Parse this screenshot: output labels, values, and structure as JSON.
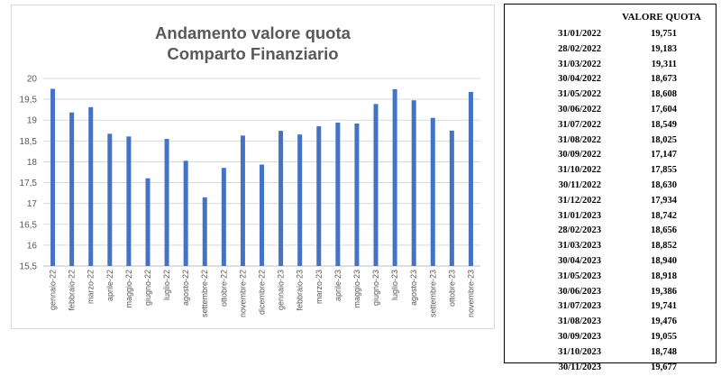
{
  "chart_data": {
    "type": "bar",
    "title": [
      "Andamento valore quota",
      "Comparto Finanziario"
    ],
    "xlabel": "",
    "ylabel": "",
    "ylim": [
      15.5,
      20
    ],
    "yticks": [
      "15,5",
      "16",
      "16,5",
      "17",
      "17,5",
      "18",
      "18,5",
      "19",
      "19,5",
      "20"
    ],
    "ytick_values": [
      15.5,
      16,
      16.5,
      17,
      17.5,
      18,
      18.5,
      19,
      19.5,
      20
    ],
    "categories": [
      "gennaio-22",
      "febbraio-22",
      "marzo-22",
      "aprile-22",
      "maggio-22",
      "giugno-22",
      "luglio-22",
      "agosto-22",
      "settembre-22",
      "ottobre-22",
      "novembre-22",
      "dicembre-22",
      "gennaio-23",
      "febbraio-23",
      "marzo-23",
      "aprile-23",
      "maggio-23",
      "giugno-23",
      "luglio-23",
      "agosto-23",
      "settembre-23",
      "ottobre-23",
      "novembre-23"
    ],
    "values": [
      19.751,
      19.183,
      19.311,
      18.673,
      18.608,
      17.604,
      18.549,
      18.025,
      17.147,
      17.855,
      18.63,
      17.934,
      18.742,
      18.656,
      18.852,
      18.94,
      18.918,
      19.386,
      19.741,
      19.476,
      19.055,
      18.748,
      19.677
    ],
    "bar_color": "#4472c4",
    "gridlines": true,
    "legend": false
  },
  "table": {
    "header": "VALORE QUOTA",
    "rows": [
      {
        "date": "31/01/2022",
        "value": "19,751"
      },
      {
        "date": "28/02/2022",
        "value": "19,183"
      },
      {
        "date": "31/03/2022",
        "value": "19,311"
      },
      {
        "date": "30/04/2022",
        "value": "18,673"
      },
      {
        "date": "31/05/2022",
        "value": "18,608"
      },
      {
        "date": "30/06/2022",
        "value": "17,604"
      },
      {
        "date": "31/07/2022",
        "value": "18,549"
      },
      {
        "date": "31/08/2022",
        "value": "18,025"
      },
      {
        "date": "30/09/2022",
        "value": "17,147"
      },
      {
        "date": "31/10/2022",
        "value": "17,855"
      },
      {
        "date": "30/11/2022",
        "value": "18,630"
      },
      {
        "date": "31/12/2022",
        "value": "17,934"
      },
      {
        "date": "31/01/2023",
        "value": "18,742"
      },
      {
        "date": "28/02/2023",
        "value": "18,656"
      },
      {
        "date": "31/03/2023",
        "value": "18,852"
      },
      {
        "date": "30/04/2023",
        "value": "18,940"
      },
      {
        "date": "31/05/2023",
        "value": "18,918"
      },
      {
        "date": "30/06/2023",
        "value": "19,386"
      },
      {
        "date": "31/07/2023",
        "value": "19,741"
      },
      {
        "date": "31/08/2023",
        "value": "19,476"
      },
      {
        "date": "30/09/2023",
        "value": "19,055"
      },
      {
        "date": "31/10/2023",
        "value": "18,748"
      },
      {
        "date": "30/11/2023",
        "value": "19,677"
      }
    ]
  }
}
